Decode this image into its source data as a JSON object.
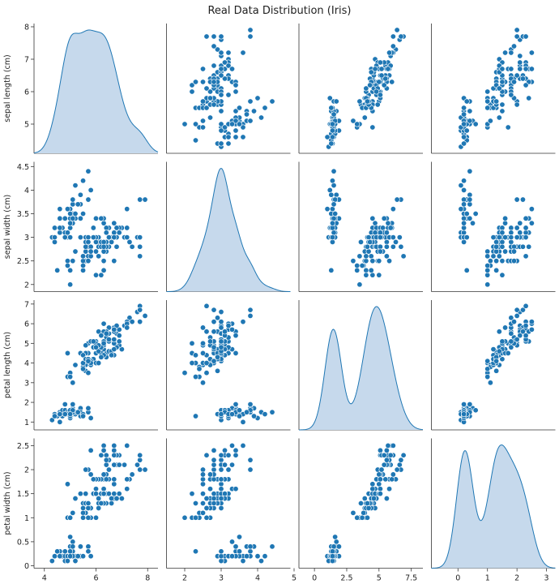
{
  "figure": {
    "title": "Real Data Distribution (Iris)"
  },
  "chart_data": {
    "type": "scatter",
    "title": "Real Data Distribution (Iris)",
    "kind": "pairplot",
    "diag_kind": "kde",
    "colors": {
      "point": "#1f77b4",
      "point_edge": "#ffffff",
      "kde_fill": "#c6d9ec",
      "kde_line": "#1f77b4",
      "axis": "#333333"
    },
    "variables": [
      {
        "label": "sepal length (cm)",
        "lim": [
          4.0,
          8.3
        ],
        "ticks": [
          4,
          6,
          8
        ],
        "ytick_labels": [
          5,
          6,
          7,
          8
        ]
      },
      {
        "label": "sepal width (cm)",
        "lim": [
          1.9,
          4.55
        ],
        "ticks": [
          2,
          3,
          4,
          5
        ],
        "ytick_labels": [
          2.0,
          2.5,
          3.0,
          3.5,
          4.0,
          4.5
        ]
      },
      {
        "label": "petal length (cm)",
        "lim": [
          0.8,
          7.1
        ],
        "ticks": [
          0.0,
          2.5,
          5.0,
          7.5
        ],
        "ytick_labels": [
          1,
          2,
          3,
          4,
          5,
          6,
          7
        ]
      },
      {
        "label": "petal width (cm)",
        "lim": [
          0.0,
          2.6
        ],
        "ticks": [
          0,
          1,
          2,
          3
        ],
        "ytick_labels": [
          0.0,
          0.5,
          1.0,
          1.5,
          2.0,
          2.5
        ]
      }
    ],
    "diag_x_lims": [
      [
        3.0,
        9.0
      ],
      [
        1.5,
        5.0
      ],
      [
        -1.5,
        9.0
      ],
      [
        -0.9,
        3.3
      ]
    ],
    "samples": [
      [
        5.1,
        3.5,
        1.4,
        0.2
      ],
      [
        4.9,
        3.0,
        1.4,
        0.2
      ],
      [
        4.7,
        3.2,
        1.3,
        0.2
      ],
      [
        4.6,
        3.1,
        1.5,
        0.2
      ],
      [
        5.0,
        3.6,
        1.4,
        0.2
      ],
      [
        5.4,
        3.9,
        1.7,
        0.4
      ],
      [
        4.6,
        3.4,
        1.4,
        0.3
      ],
      [
        5.0,
        3.4,
        1.5,
        0.2
      ],
      [
        4.4,
        2.9,
        1.4,
        0.2
      ],
      [
        4.9,
        3.1,
        1.5,
        0.1
      ],
      [
        5.4,
        3.7,
        1.5,
        0.2
      ],
      [
        4.8,
        3.4,
        1.6,
        0.2
      ],
      [
        4.8,
        3.0,
        1.4,
        0.1
      ],
      [
        4.3,
        3.0,
        1.1,
        0.1
      ],
      [
        5.8,
        4.0,
        1.2,
        0.2
      ],
      [
        5.7,
        4.4,
        1.5,
        0.4
      ],
      [
        5.4,
        3.9,
        1.3,
        0.4
      ],
      [
        5.1,
        3.5,
        1.4,
        0.3
      ],
      [
        5.7,
        3.8,
        1.7,
        0.3
      ],
      [
        5.1,
        3.8,
        1.5,
        0.3
      ],
      [
        5.4,
        3.4,
        1.7,
        0.2
      ],
      [
        5.1,
        3.7,
        1.5,
        0.4
      ],
      [
        4.6,
        3.6,
        1.0,
        0.2
      ],
      [
        5.1,
        3.3,
        1.7,
        0.5
      ],
      [
        4.8,
        3.4,
        1.9,
        0.2
      ],
      [
        5.0,
        3.0,
        1.6,
        0.2
      ],
      [
        5.0,
        3.4,
        1.6,
        0.4
      ],
      [
        5.2,
        3.5,
        1.5,
        0.2
      ],
      [
        5.2,
        3.4,
        1.4,
        0.2
      ],
      [
        4.7,
        3.2,
        1.6,
        0.2
      ],
      [
        4.8,
        3.1,
        1.6,
        0.2
      ],
      [
        5.4,
        3.4,
        1.5,
        0.4
      ],
      [
        5.2,
        4.1,
        1.5,
        0.1
      ],
      [
        5.5,
        4.2,
        1.4,
        0.2
      ],
      [
        4.9,
        3.1,
        1.5,
        0.2
      ],
      [
        5.0,
        3.2,
        1.2,
        0.2
      ],
      [
        5.5,
        3.5,
        1.3,
        0.2
      ],
      [
        4.9,
        3.6,
        1.4,
        0.1
      ],
      [
        4.4,
        3.0,
        1.3,
        0.2
      ],
      [
        5.1,
        3.4,
        1.5,
        0.2
      ],
      [
        5.0,
        3.5,
        1.3,
        0.3
      ],
      [
        4.5,
        2.3,
        1.3,
        0.3
      ],
      [
        4.4,
        3.2,
        1.3,
        0.2
      ],
      [
        5.0,
        3.5,
        1.6,
        0.6
      ],
      [
        5.1,
        3.8,
        1.9,
        0.4
      ],
      [
        4.8,
        3.0,
        1.4,
        0.3
      ],
      [
        5.1,
        3.8,
        1.6,
        0.2
      ],
      [
        4.6,
        3.2,
        1.4,
        0.2
      ],
      [
        5.3,
        3.7,
        1.5,
        0.2
      ],
      [
        5.0,
        3.3,
        1.4,
        0.2
      ],
      [
        7.0,
        3.2,
        4.7,
        1.4
      ],
      [
        6.4,
        3.2,
        4.5,
        1.5
      ],
      [
        6.9,
        3.1,
        4.9,
        1.5
      ],
      [
        5.5,
        2.3,
        4.0,
        1.3
      ],
      [
        6.5,
        2.8,
        4.6,
        1.5
      ],
      [
        5.7,
        2.8,
        4.5,
        1.3
      ],
      [
        6.3,
        3.3,
        4.7,
        1.6
      ],
      [
        4.9,
        2.4,
        3.3,
        1.0
      ],
      [
        6.6,
        2.9,
        4.6,
        1.3
      ],
      [
        5.2,
        2.7,
        3.9,
        1.4
      ],
      [
        5.0,
        2.0,
        3.5,
        1.0
      ],
      [
        5.9,
        3.0,
        4.2,
        1.5
      ],
      [
        6.0,
        2.2,
        4.0,
        1.0
      ],
      [
        6.1,
        2.9,
        4.7,
        1.4
      ],
      [
        5.6,
        2.9,
        3.6,
        1.3
      ],
      [
        6.7,
        3.1,
        4.4,
        1.4
      ],
      [
        5.6,
        3.0,
        4.5,
        1.5
      ],
      [
        5.8,
        2.7,
        4.1,
        1.0
      ],
      [
        6.2,
        2.2,
        4.5,
        1.5
      ],
      [
        5.6,
        2.5,
        3.9,
        1.1
      ],
      [
        5.9,
        3.2,
        4.8,
        1.8
      ],
      [
        6.1,
        2.8,
        4.0,
        1.3
      ],
      [
        6.3,
        2.5,
        4.9,
        1.5
      ],
      [
        6.1,
        2.8,
        4.7,
        1.2
      ],
      [
        6.4,
        2.9,
        4.3,
        1.3
      ],
      [
        6.6,
        3.0,
        4.4,
        1.4
      ],
      [
        6.8,
        2.8,
        4.8,
        1.4
      ],
      [
        6.7,
        3.0,
        5.0,
        1.7
      ],
      [
        6.0,
        2.9,
        4.5,
        1.5
      ],
      [
        5.7,
        2.6,
        3.5,
        1.0
      ],
      [
        5.5,
        2.4,
        3.8,
        1.1
      ],
      [
        5.5,
        2.4,
        3.7,
        1.0
      ],
      [
        5.8,
        2.7,
        3.9,
        1.2
      ],
      [
        6.0,
        2.7,
        5.1,
        1.6
      ],
      [
        5.4,
        3.0,
        4.5,
        1.5
      ],
      [
        6.0,
        3.4,
        4.5,
        1.6
      ],
      [
        6.7,
        3.1,
        4.7,
        1.5
      ],
      [
        6.3,
        2.3,
        4.4,
        1.3
      ],
      [
        5.6,
        3.0,
        4.1,
        1.3
      ],
      [
        5.5,
        2.5,
        4.0,
        1.3
      ],
      [
        5.5,
        2.6,
        4.4,
        1.2
      ],
      [
        6.1,
        3.0,
        4.6,
        1.4
      ],
      [
        5.8,
        2.6,
        4.0,
        1.2
      ],
      [
        5.0,
        2.3,
        3.3,
        1.0
      ],
      [
        5.6,
        2.7,
        4.2,
        1.3
      ],
      [
        5.7,
        3.0,
        4.2,
        1.2
      ],
      [
        5.7,
        2.9,
        4.2,
        1.3
      ],
      [
        6.2,
        2.9,
        4.3,
        1.3
      ],
      [
        5.1,
        2.5,
        3.0,
        1.1
      ],
      [
        5.7,
        2.8,
        4.1,
        1.3
      ],
      [
        6.3,
        3.3,
        6.0,
        2.5
      ],
      [
        5.8,
        2.7,
        5.1,
        1.9
      ],
      [
        7.1,
        3.0,
        5.9,
        2.1
      ],
      [
        6.3,
        2.9,
        5.6,
        1.8
      ],
      [
        6.5,
        3.0,
        5.8,
        2.2
      ],
      [
        7.6,
        3.0,
        6.6,
        2.1
      ],
      [
        4.9,
        2.5,
        4.5,
        1.7
      ],
      [
        7.3,
        2.9,
        6.3,
        1.8
      ],
      [
        6.7,
        2.5,
        5.8,
        1.8
      ],
      [
        7.2,
        3.6,
        6.1,
        2.5
      ],
      [
        6.5,
        3.2,
        5.1,
        2.0
      ],
      [
        6.4,
        2.7,
        5.3,
        1.9
      ],
      [
        6.8,
        3.0,
        5.5,
        2.1
      ],
      [
        5.7,
        2.5,
        5.0,
        2.0
      ],
      [
        5.8,
        2.8,
        5.1,
        2.4
      ],
      [
        6.4,
        3.2,
        5.3,
        2.3
      ],
      [
        6.5,
        3.0,
        5.5,
        1.8
      ],
      [
        7.7,
        3.8,
        6.7,
        2.2
      ],
      [
        7.7,
        2.6,
        6.9,
        2.3
      ],
      [
        6.0,
        2.2,
        5.0,
        1.5
      ],
      [
        6.9,
        3.2,
        5.7,
        2.3
      ],
      [
        5.6,
        2.8,
        4.9,
        2.0
      ],
      [
        7.7,
        2.8,
        6.7,
        2.0
      ],
      [
        6.3,
        2.7,
        4.9,
        1.8
      ],
      [
        6.7,
        3.3,
        5.7,
        2.1
      ],
      [
        7.2,
        3.2,
        6.0,
        1.8
      ],
      [
        6.2,
        2.8,
        4.8,
        1.8
      ],
      [
        6.1,
        3.0,
        4.9,
        1.8
      ],
      [
        6.4,
        2.8,
        5.6,
        2.1
      ],
      [
        7.2,
        3.0,
        5.8,
        1.6
      ],
      [
        7.4,
        2.8,
        6.1,
        1.9
      ],
      [
        7.9,
        3.8,
        6.4,
        2.0
      ],
      [
        6.4,
        2.8,
        5.6,
        2.2
      ],
      [
        6.3,
        2.8,
        5.1,
        1.5
      ],
      [
        6.1,
        2.6,
        5.6,
        1.4
      ],
      [
        7.7,
        3.0,
        6.1,
        2.3
      ],
      [
        6.3,
        3.4,
        5.6,
        2.4
      ],
      [
        6.4,
        3.1,
        5.5,
        1.8
      ],
      [
        6.0,
        3.0,
        4.8,
        1.8
      ],
      [
        6.9,
        3.1,
        5.4,
        2.1
      ],
      [
        6.7,
        3.1,
        5.6,
        2.4
      ],
      [
        6.9,
        3.1,
        5.1,
        2.3
      ],
      [
        5.8,
        2.7,
        5.1,
        1.9
      ],
      [
        6.8,
        3.2,
        5.9,
        2.3
      ],
      [
        6.7,
        3.3,
        5.7,
        2.5
      ],
      [
        6.7,
        3.0,
        5.2,
        2.3
      ],
      [
        6.3,
        2.5,
        5.0,
        1.9
      ],
      [
        6.5,
        3.0,
        5.2,
        2.0
      ],
      [
        6.2,
        3.4,
        5.4,
        2.3
      ],
      [
        5.9,
        3.0,
        5.1,
        1.8
      ]
    ]
  }
}
